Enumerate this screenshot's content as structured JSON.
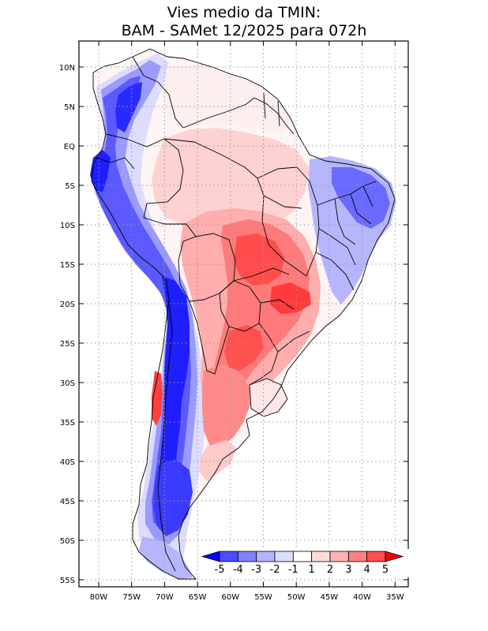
{
  "title": {
    "line1": "Vies medio da TMIN:",
    "line2": "BAM - SAMet 12/2025  para 072h"
  },
  "axes": {
    "lon_labels": [
      "80W",
      "75W",
      "70W",
      "65W",
      "60W",
      "55W",
      "50W",
      "45W",
      "40W",
      "35W"
    ],
    "lat_labels": [
      "10N",
      "5N",
      "EQ",
      "5S",
      "10S",
      "15S",
      "20S",
      "25S",
      "30S",
      "35S",
      "40S",
      "45S",
      "50S",
      "55S"
    ]
  },
  "colorbar": {
    "labels": [
      "-5",
      "-4",
      "-3",
      "-2",
      "-1",
      "1",
      "2",
      "3",
      "4",
      "5"
    ],
    "colors": [
      "#0000ff",
      "#4d4dff",
      "#8080ff",
      "#b3b3ff",
      "#dcdcff",
      "#ffffff",
      "#ffdcdc",
      "#ffb3b3",
      "#ff8080",
      "#ff4d4d",
      "#ff0000"
    ]
  },
  "palette": {
    "strong_blue": "#1e1eff",
    "mid_blue": "#6a6aff",
    "light_blue": "#b6b6ff",
    "pale_blue": "#dcdcff",
    "pale_red": "#ffdcdc",
    "light_red": "#ffb3b3",
    "mid_red": "#ff8080",
    "strong_red": "#ff4d4d"
  }
}
